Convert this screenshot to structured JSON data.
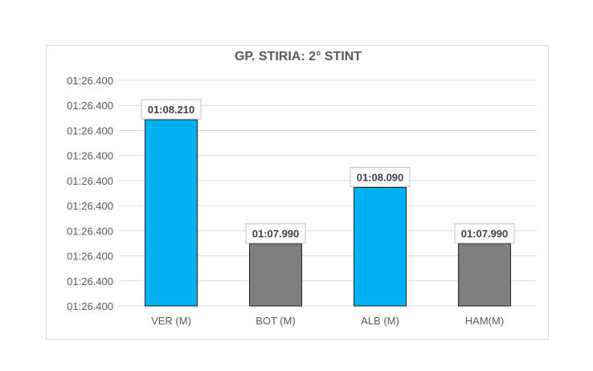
{
  "chart_data": {
    "type": "bar",
    "title": "GP. STIRIA: 2°  STINT",
    "categories": [
      "VER (M)",
      "BOT (M)",
      "ALB (M)",
      "HAM(M)"
    ],
    "values_label": [
      "01:08.210",
      "01:07.990",
      "01:08.090",
      "01:07.990"
    ],
    "values_seconds": [
      68.21,
      67.99,
      68.09,
      67.99
    ],
    "bar_colors": [
      "#00b0f0",
      "#7f7f7f",
      "#00b0f0",
      "#7f7f7f"
    ],
    "y_tick_labels": [
      "01:26.400",
      "01:26.400",
      "01:26.400",
      "01:26.400",
      "01:26.400",
      "01:26.400",
      "01:26.400",
      "01:26.400",
      "01:26.400",
      "01:26.400"
    ],
    "ylim_seconds": [
      67.88,
      68.28
    ],
    "xlabel": "",
    "ylabel": "",
    "grid": true,
    "legend": "none"
  }
}
